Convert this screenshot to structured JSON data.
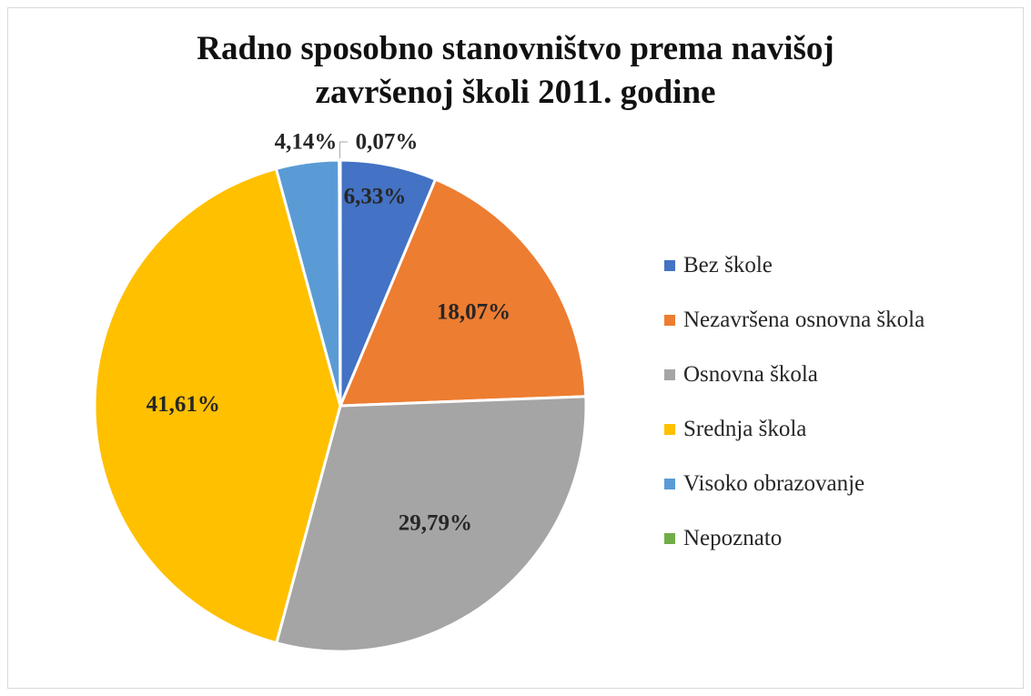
{
  "chart_data": {
    "type": "pie",
    "title": [
      "Radno sposobno stanovništvo prema navišoj",
      "završenoj školi 2011. godine"
    ],
    "legend_position": "right",
    "slices": [
      {
        "name": "Bez škole",
        "value": 6.33,
        "label": "6,33%",
        "color": "#4472C4"
      },
      {
        "name": "Nezavršena osnovna škola",
        "value": 18.07,
        "label": "18,07%",
        "color": "#ED7D31"
      },
      {
        "name": "Osnovna škola",
        "value": 29.79,
        "label": "29,79%",
        "color": "#A5A5A5"
      },
      {
        "name": "Srednja škola",
        "value": 41.61,
        "label": "41,61%",
        "color": "#FFC000"
      },
      {
        "name": "Visoko obrazovanje",
        "value": 4.14,
        "label": "4,14%",
        "color": "#5B9BD5"
      },
      {
        "name": "Nepoznato",
        "value": 0.07,
        "label": "0,07%",
        "color": "#70AD47"
      }
    ]
  }
}
